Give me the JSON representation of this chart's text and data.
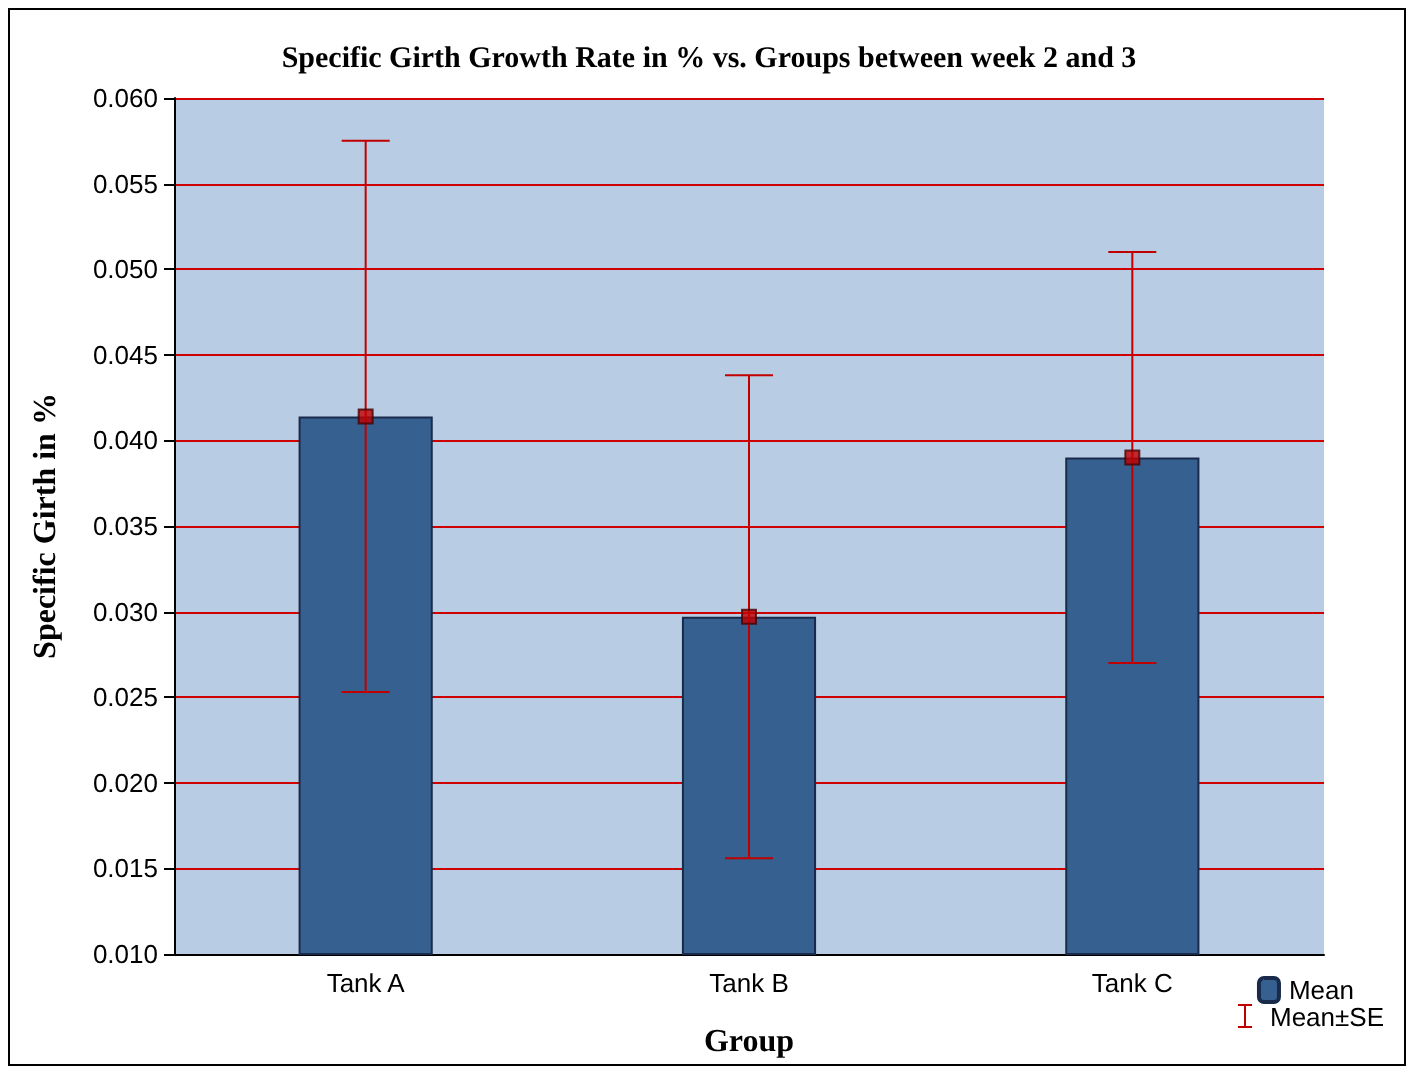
{
  "chart_data": {
    "type": "bar",
    "title": "Specific Girth Growth Rate in % vs. Groups between week 2 and 3",
    "xlabel": "Group",
    "ylabel": "Specific Girth in %",
    "categories": [
      "Tank A",
      "Tank B",
      "Tank C"
    ],
    "series": [
      {
        "name": "Mean",
        "color": "#35608f",
        "values": [
          0.0414,
          0.0297,
          0.039
        ],
        "errors": [
          0.0161,
          0.0141,
          0.012
        ]
      },
      {
        "type": "scatter",
        "color": "#c00000",
        "x": [
          "Tank A",
          "Tank B",
          "Tank C"
        ],
        "values": [
          0.0414,
          0.0297,
          0.039
        ]
      }
    ],
    "ylim": [
      0.01,
      0.06
    ],
    "yticks": [
      {
        "value": 0.01,
        "label": "0.010"
      },
      0.015,
      {
        "value": 0.02,
        "label": "0.020"
      },
      0.025,
      {
        "value": 0.03,
        "label": "0.030"
      },
      0.035,
      {
        "value": 0.04,
        "label": "0.040"
      },
      0.045,
      {
        "value": 0.05,
        "label": "0.050"
      },
      0.055,
      {
        "value": 0.06,
        "label": "0.060"
      }
    ],
    "grid": "y",
    "legend": "bottom right",
    "marker": "square",
    "annotations": [
      "Mean±SE"
    ]
  }
}
